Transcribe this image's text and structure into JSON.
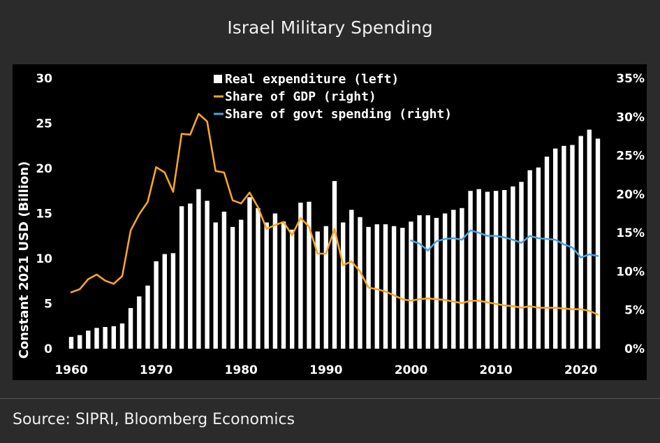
{
  "header": {
    "title": "Israel Military Spending"
  },
  "footer": {
    "source": "Source: SIPRI, Bloomberg Economics"
  },
  "chart_data": {
    "type": "bar",
    "title": "Israel Military Spending",
    "xlabel": "",
    "ylabel": "Constant 2021 USD (Billion)",
    "ylim": [
      0,
      30
    ],
    "y2lim": [
      0,
      35
    ],
    "x_ticks": [
      "1960",
      "1970",
      "1980",
      "1990",
      "2000",
      "2010",
      "2020"
    ],
    "y_ticks": [
      "0",
      "5",
      "10",
      "15",
      "20",
      "25",
      "30"
    ],
    "y2_ticks": [
      "0%",
      "5%",
      "10%",
      "15%",
      "20%",
      "25%",
      "30%",
      "35%"
    ],
    "legend_position": "top",
    "colors": {
      "bars": "#ffffff",
      "gdp": "#f5a623",
      "govt": "#4aa3e0"
    },
    "series": [
      {
        "name": "Real expenditure (left)",
        "type": "bar",
        "axis": "left",
        "x": [
          1960,
          1961,
          1962,
          1963,
          1964,
          1965,
          1966,
          1967,
          1968,
          1969,
          1970,
          1971,
          1972,
          1973,
          1974,
          1975,
          1976,
          1977,
          1978,
          1979,
          1980,
          1981,
          1982,
          1983,
          1984,
          1985,
          1986,
          1987,
          1988,
          1989,
          1990,
          1991,
          1992,
          1993,
          1994,
          1995,
          1996,
          1997,
          1998,
          1999,
          2000,
          2001,
          2002,
          2003,
          2004,
          2005,
          2006,
          2007,
          2008,
          2009,
          2010,
          2011,
          2012,
          2013,
          2014,
          2015,
          2016,
          2017,
          2018,
          2019,
          2020,
          2021,
          2022
        ],
        "values": [
          1.3,
          1.5,
          2.0,
          2.3,
          2.4,
          2.5,
          2.8,
          4.5,
          5.8,
          7.0,
          9.7,
          10.5,
          10.6,
          15.8,
          16.1,
          17.7,
          16.4,
          14.0,
          15.2,
          13.5,
          14.3,
          16.8,
          15.6,
          14.0,
          15.0,
          14.1,
          13.2,
          16.2,
          16.3,
          13.0,
          13.6,
          18.6,
          14.0,
          15.4,
          14.6,
          13.5,
          13.8,
          13.8,
          13.6,
          13.4,
          14.1,
          14.8,
          14.8,
          14.5,
          15.0,
          15.4,
          15.6,
          17.5,
          17.7,
          17.4,
          17.5,
          17.6,
          18.0,
          18.5,
          19.8,
          20.1,
          21.3,
          22.2,
          22.5,
          22.6,
          23.6,
          24.3,
          23.3
        ]
      },
      {
        "name": "Share of GDP (right)",
        "type": "line",
        "axis": "right",
        "x": [
          1960,
          1961,
          1962,
          1963,
          1964,
          1965,
          1966,
          1967,
          1968,
          1969,
          1970,
          1971,
          1972,
          1973,
          1974,
          1975,
          1976,
          1977,
          1978,
          1979,
          1980,
          1981,
          1982,
          1983,
          1984,
          1985,
          1986,
          1987,
          1988,
          1989,
          1990,
          1991,
          1992,
          1993,
          1994,
          1995,
          1996,
          1997,
          1998,
          1999,
          2000,
          2001,
          2002,
          2003,
          2004,
          2005,
          2006,
          2007,
          2008,
          2009,
          2010,
          2011,
          2012,
          2013,
          2014,
          2015,
          2016,
          2017,
          2018,
          2019,
          2020,
          2021,
          2022
        ],
        "values": [
          7.3,
          7.7,
          9.0,
          9.6,
          8.8,
          8.4,
          9.4,
          15.3,
          17.4,
          19.0,
          23.5,
          22.8,
          20.3,
          27.8,
          27.7,
          30.4,
          29.4,
          23.0,
          22.8,
          19.2,
          18.8,
          20.2,
          18.3,
          15.5,
          16.0,
          16.4,
          14.7,
          16.9,
          15.8,
          12.3,
          12.3,
          15.5,
          10.8,
          11.3,
          10.0,
          7.9,
          7.7,
          7.4,
          6.9,
          6.4,
          6.2,
          6.4,
          6.5,
          6.4,
          6.3,
          6.1,
          5.9,
          6.2,
          6.2,
          6.0,
          5.8,
          5.6,
          5.5,
          5.3,
          5.5,
          5.3,
          5.3,
          5.3,
          5.2,
          5.1,
          5.1,
          4.9,
          4.4
        ]
      },
      {
        "name": "Share of govt spending (right)",
        "type": "line",
        "axis": "right",
        "x": [
          2000,
          2001,
          2002,
          2003,
          2004,
          2005,
          2006,
          2007,
          2008,
          2009,
          2010,
          2011,
          2012,
          2013,
          2014,
          2015,
          2016,
          2017,
          2018,
          2019,
          2020,
          2021,
          2022
        ],
        "values": [
          14.0,
          13.6,
          12.7,
          13.9,
          14.2,
          14.3,
          14.1,
          15.3,
          15.0,
          14.6,
          14.6,
          14.4,
          14.1,
          13.7,
          14.6,
          14.3,
          14.2,
          14.1,
          13.5,
          13.1,
          11.8,
          12.2,
          12.0
        ]
      }
    ]
  }
}
